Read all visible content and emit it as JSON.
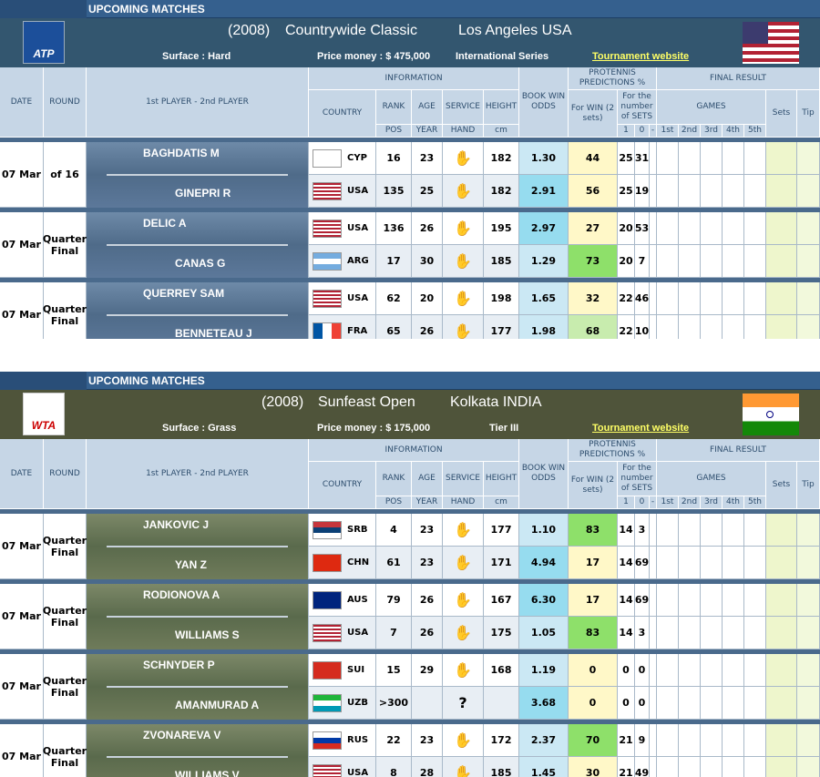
{
  "headers": {
    "date": "DATE",
    "round": "ROUND",
    "players": "1st PLAYER     -     2nd PLAYER",
    "information": "INFORMATION",
    "country": "COUNTRY",
    "rank": "RANK",
    "age": "AGE",
    "service": "SERVICE",
    "height": "HEIGHT",
    "pos": "POS",
    "year": "YEAR",
    "hand": "HAND",
    "cm": "cm",
    "book_odds": "BOOK WIN ODDS",
    "protennis": "PROTENNIS PREDICTIONS %",
    "for_win": "For WIN (2 sets)",
    "for_number": "For the number of SETS",
    "one": "1",
    "zero": "0",
    "dash": "-",
    "final_result": "FINAL RESULT",
    "games": "GAMES",
    "g1": "1st",
    "g2": "2nd",
    "g3": "3rd",
    "g4": "4th",
    "g5": "5th",
    "sets": "Sets",
    "tip": "Tip"
  },
  "tournaments": [
    {
      "banner": "UPCOMING MATCHES",
      "year": "(2008)",
      "name": "Countrywide Classic",
      "location": "Los Angeles USA",
      "surface": "Surface : Hard",
      "prize": "Price money : $ 475,000",
      "series": "International Series",
      "website": "Tournament website",
      "logo": "ATP",
      "flag": "usa-flag",
      "matches": [
        {
          "date": "07 Mar",
          "round": "of 16",
          "p1": {
            "name": "BAGHDATIS M",
            "country": "CYP",
            "rank": "16",
            "age": "23",
            "height": "182",
            "odds": "1.30",
            "win": "44",
            "s1": "25",
            "s0": "31"
          },
          "p2": {
            "name": "GINEPRI R",
            "country": "USA",
            "rank": "135",
            "age": "25",
            "height": "182",
            "odds": "2.91",
            "win": "56",
            "s1": "25",
            "s0": "19"
          }
        },
        {
          "date": "07 Mar",
          "round": "Quarter Final",
          "p1": {
            "name": "DELIC A",
            "country": "USA",
            "rank": "136",
            "age": "26",
            "height": "195",
            "odds": "2.97",
            "win": "27",
            "s1": "20",
            "s0": "53"
          },
          "p2": {
            "name": "CANAS G",
            "country": "ARG",
            "rank": "17",
            "age": "30",
            "height": "185",
            "odds": "1.29",
            "win": "73",
            "s1": "20",
            "s0": "7"
          }
        },
        {
          "date": "07 Mar",
          "round": "Quarter Final",
          "p1": {
            "name": "QUERREY SAM",
            "country": "USA",
            "rank": "62",
            "age": "20",
            "height": "198",
            "odds": "1.65",
            "win": "32",
            "s1": "22",
            "s0": "46"
          },
          "p2": {
            "name": "BENNETEAU J",
            "country": "FRA",
            "rank": "65",
            "age": "26",
            "height": "177",
            "odds": "1.98",
            "win": "68",
            "s1": "22",
            "s0": "10"
          }
        }
      ]
    },
    {
      "banner": "UPCOMING MATCHES",
      "year": "(2008)",
      "name": "Sunfeast Open",
      "location": "Kolkata INDIA",
      "surface": "Surface : Grass",
      "prize": "Price money : $ 175,000",
      "series": "Tier III",
      "website": "Tournament website",
      "logo": "WTA",
      "flag": "india-flag",
      "matches": [
        {
          "date": "07 Mar",
          "round": "Quarter Final",
          "p1": {
            "name": "JANKOVIC J",
            "country": "SRB",
            "rank": "4",
            "age": "23",
            "height": "177",
            "odds": "1.10",
            "win": "83",
            "s1": "14",
            "s0": "3"
          },
          "p2": {
            "name": "YAN Z",
            "country": "CHN",
            "rank": "61",
            "age": "23",
            "height": "171",
            "odds": "4.94",
            "win": "17",
            "s1": "14",
            "s0": "69"
          }
        },
        {
          "date": "07 Mar",
          "round": "Quarter Final",
          "p1": {
            "name": "RODIONOVA A",
            "country": "AUS",
            "rank": "79",
            "age": "26",
            "height": "167",
            "odds": "6.30",
            "win": "17",
            "s1": "14",
            "s0": "69"
          },
          "p2": {
            "name": "WILLIAMS S",
            "country": "USA",
            "rank": "7",
            "age": "26",
            "height": "175",
            "odds": "1.05",
            "win": "83",
            "s1": "14",
            "s0": "3"
          }
        },
        {
          "date": "07 Mar",
          "round": "Quarter Final",
          "p1": {
            "name": "SCHNYDER P",
            "country": "SUI",
            "rank": "15",
            "age": "29",
            "height": "168",
            "odds": "1.19",
            "win": "0",
            "s1": "0",
            "s0": "0"
          },
          "p2": {
            "name": "AMANMURAD A",
            "country": "UZB",
            "rank": ">300",
            "age": "",
            "height": "",
            "odds": "3.68",
            "win": "0",
            "s1": "0",
            "s0": "0",
            "hand": "?"
          }
        },
        {
          "date": "07 Mar",
          "round": "Quarter Final",
          "p1": {
            "name": "ZVONAREVA V",
            "country": "RUS",
            "rank": "22",
            "age": "23",
            "height": "172",
            "odds": "2.37",
            "win": "70",
            "s1": "21",
            "s0": "9"
          },
          "p2": {
            "name": "WILLIAMS V",
            "country": "USA",
            "rank": "8",
            "age": "28",
            "height": "185",
            "odds": "1.45",
            "win": "30",
            "s1": "21",
            "s0": "49"
          }
        }
      ]
    }
  ]
}
